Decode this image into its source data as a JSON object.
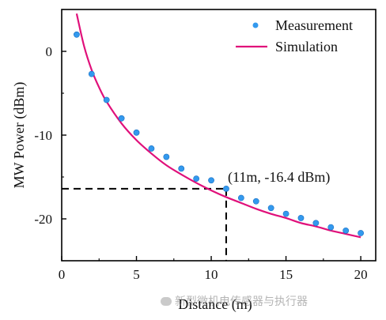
{
  "chart_data": {
    "type": "scatter",
    "title": "",
    "xlabel": "Distance (m)",
    "ylabel": "MW Power (dBm)",
    "xlim": [
      0,
      21
    ],
    "ylim": [
      -25,
      5
    ],
    "x_ticks": [
      0,
      5,
      10,
      15,
      20
    ],
    "y_ticks": [
      0,
      -10,
      -20
    ],
    "grid": false,
    "legend_position": "top-right",
    "series": [
      {
        "name": "Measurement",
        "kind": "scatter",
        "color": "#3399ee",
        "x": [
          1,
          2,
          3,
          4,
          5,
          6,
          7,
          8,
          9,
          10,
          11,
          12,
          13,
          14,
          15,
          16,
          17,
          18,
          19,
          20
        ],
        "y": [
          2.0,
          -2.7,
          -5.8,
          -8.0,
          -9.7,
          -11.6,
          -12.6,
          -14.0,
          -15.2,
          -15.4,
          -16.4,
          -17.5,
          -17.9,
          -18.7,
          -19.4,
          -19.9,
          -20.5,
          -21.0,
          -21.4,
          -21.7
        ]
      },
      {
        "name": "Simulation",
        "kind": "line",
        "color": "#e0107a",
        "x": [
          1,
          1.5,
          2,
          2.5,
          3,
          4,
          5,
          6,
          7,
          8,
          9,
          10,
          11,
          12,
          13,
          14,
          15,
          16,
          17,
          18,
          19,
          20
        ],
        "y": [
          4.5,
          0.6,
          -2.2,
          -4.3,
          -6.0,
          -8.6,
          -10.6,
          -12.2,
          -13.6,
          -14.7,
          -15.7,
          -16.6,
          -17.4,
          -18.1,
          -18.8,
          -19.4,
          -19.9,
          -20.5,
          -20.9,
          -21.4,
          -21.8,
          -22.2
        ]
      }
    ],
    "annotation": {
      "text": "(11m, -16.4 dBm)",
      "x": 11,
      "y": -16.4
    }
  },
  "watermark": "新型微机电传感器与执行器"
}
